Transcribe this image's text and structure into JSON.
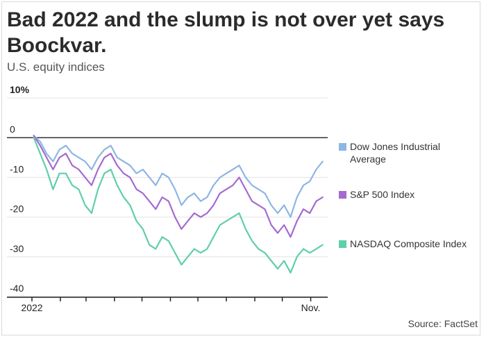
{
  "header": {
    "title": "Bad 2022 and the slump is not over yet says Boockvar.",
    "subtitle": "U.S. equity indices"
  },
  "footer": {
    "source": "Source: FactSet"
  },
  "colors": {
    "dow": "#8db6e3",
    "sp500": "#a56ad0",
    "nasdaq": "#5fcfa8",
    "zero_line": "#333333",
    "grid": "#e3e3e3"
  },
  "chart_data": {
    "type": "line",
    "title": "Bad 2022 and the slump is not over yet says Boockvar.",
    "subtitle": "U.S. equity indices",
    "xlabel": "",
    "ylabel": "",
    "ylim": [
      -40,
      10
    ],
    "yticks": [
      10,
      0,
      -10,
      -20,
      -30,
      -40
    ],
    "ytick_labels": [
      "10%",
      "0",
      "-10",
      "-20",
      "-30",
      "-40"
    ],
    "xlim": [
      "2022-01-01",
      "2022-11-18"
    ],
    "x_tick_dates": [
      "2022-01-01",
      "2022-02-01",
      "2022-03-01",
      "2022-04-01",
      "2022-05-01",
      "2022-06-01",
      "2022-07-01",
      "2022-08-01",
      "2022-09-01",
      "2022-10-01",
      "2022-11-01"
    ],
    "x_tick_labels": [
      {
        "date": "2022-01-01",
        "label": "2022"
      },
      {
        "date": "2022-11-01",
        "label": "Nov."
      }
    ],
    "grid": true,
    "legend_position": "right",
    "x": [
      "2022-01-03",
      "2022-01-10",
      "2022-01-17",
      "2022-01-24",
      "2022-01-31",
      "2022-02-07",
      "2022-02-14",
      "2022-02-21",
      "2022-02-28",
      "2022-03-07",
      "2022-03-14",
      "2022-03-21",
      "2022-03-28",
      "2022-04-04",
      "2022-04-11",
      "2022-04-18",
      "2022-04-25",
      "2022-05-02",
      "2022-05-09",
      "2022-05-16",
      "2022-05-23",
      "2022-05-30",
      "2022-06-06",
      "2022-06-13",
      "2022-06-20",
      "2022-06-27",
      "2022-07-04",
      "2022-07-11",
      "2022-07-18",
      "2022-07-25",
      "2022-08-01",
      "2022-08-08",
      "2022-08-15",
      "2022-08-22",
      "2022-08-29",
      "2022-09-05",
      "2022-09-12",
      "2022-09-19",
      "2022-09-26",
      "2022-10-03",
      "2022-10-10",
      "2022-10-17",
      "2022-10-24",
      "2022-10-31",
      "2022-11-07",
      "2022-11-14"
    ],
    "series": [
      {
        "name": "Dow Jones Industrial Average",
        "color": "#8db6e3",
        "values": [
          0.5,
          -1,
          -4,
          -6,
          -3,
          -2,
          -4,
          -5,
          -6,
          -8,
          -5,
          -3,
          -2,
          -5,
          -6,
          -7,
          -9,
          -8,
          -10,
          -12,
          -9,
          -10,
          -13,
          -17,
          -15,
          -14,
          -16,
          -15,
          -12,
          -10,
          -9,
          -8,
          -7,
          -10,
          -12,
          -13,
          -14,
          -17,
          -19,
          -17,
          -20,
          -15,
          -12,
          -11,
          -8,
          -6
        ]
      },
      {
        "name": "S&P 500 Index",
        "color": "#a56ad0",
        "values": [
          0.5,
          -2,
          -5,
          -8,
          -5,
          -4,
          -7,
          -8,
          -10,
          -12,
          -8,
          -5,
          -4,
          -7,
          -9,
          -10,
          -13,
          -14,
          -16,
          -18,
          -15,
          -16,
          -20,
          -23,
          -21,
          -19,
          -20,
          -19,
          -17,
          -14,
          -13,
          -12,
          -10,
          -13,
          -16,
          -17,
          -18,
          -22,
          -24,
          -22,
          -25,
          -21,
          -18,
          -19,
          -16,
          -15
        ]
      },
      {
        "name": "NASDAQ Composite Index",
        "color": "#5fcfa8",
        "values": [
          0,
          -4,
          -8,
          -13,
          -9,
          -9,
          -12,
          -13,
          -17,
          -19,
          -13,
          -9,
          -8,
          -12,
          -15,
          -17,
          -21,
          -23,
          -27,
          -28,
          -25,
          -26,
          -29,
          -32,
          -30,
          -28,
          -29,
          -28,
          -25,
          -22,
          -21,
          -20,
          -19,
          -23,
          -26,
          -28,
          -29,
          -31,
          -33,
          -31,
          -34,
          -30,
          -28,
          -29,
          -28,
          -27
        ]
      }
    ]
  }
}
